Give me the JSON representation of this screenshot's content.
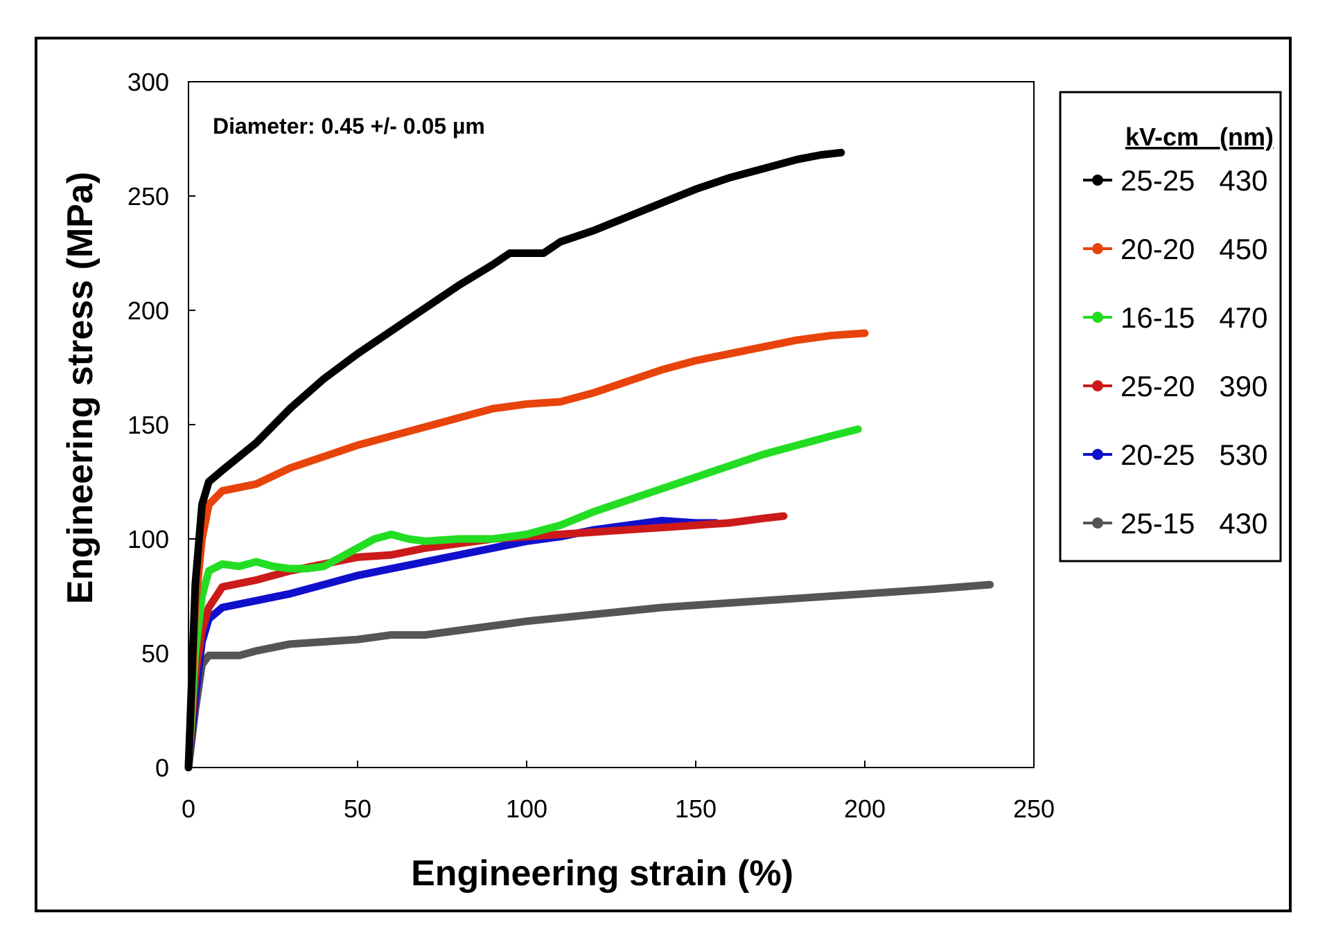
{
  "chart_data": {
    "type": "line",
    "title": "",
    "annotation": "Diameter: 0.45 +/- 0.05 µm",
    "xlabel": "Engineering strain (%)",
    "ylabel": "Engineering stress (MPa)",
    "xlim": [
      0,
      250
    ],
    "ylim": [
      0,
      300
    ],
    "xticks": [
      0,
      50,
      100,
      150,
      200,
      250
    ],
    "yticks": [
      0,
      50,
      100,
      150,
      200,
      250,
      300
    ],
    "grid": false,
    "legend": {
      "position": "right",
      "header": "kV-cm   (nm)",
      "entries": [
        "25-25   430",
        "20-20   450",
        "16-15   470",
        "25-20   390",
        "20-25   530",
        "25-15   430"
      ]
    },
    "series": [
      {
        "name": "25-25",
        "diameter": "430",
        "color": "#000000",
        "x": [
          0,
          2,
          4,
          6,
          10,
          20,
          30,
          40,
          50,
          60,
          70,
          80,
          90,
          95,
          100,
          105,
          110,
          120,
          130,
          140,
          150,
          160,
          170,
          180,
          187,
          193
        ],
        "y": [
          0,
          80,
          115,
          125,
          130,
          142,
          157,
          170,
          181,
          191,
          201,
          211,
          220,
          225,
          225,
          225,
          230,
          235,
          241,
          247,
          253,
          258,
          262,
          266,
          268,
          269
        ]
      },
      {
        "name": "20-20",
        "diameter": "450",
        "color": "#e8430a",
        "x": [
          0,
          2,
          4,
          6,
          10,
          20,
          30,
          40,
          50,
          60,
          70,
          80,
          90,
          100,
          110,
          120,
          130,
          140,
          150,
          160,
          170,
          180,
          190,
          200
        ],
        "y": [
          0,
          70,
          100,
          115,
          121,
          124,
          131,
          136,
          141,
          145,
          149,
          153,
          157,
          159,
          160,
          164,
          169,
          174,
          178,
          181,
          184,
          187,
          189,
          190
        ]
      },
      {
        "name": "16-15",
        "diameter": "470",
        "color": "#22dd22",
        "x": [
          0,
          2,
          4,
          6,
          10,
          15,
          20,
          25,
          30,
          35,
          40,
          45,
          50,
          55,
          60,
          65,
          70,
          80,
          90,
          100,
          110,
          120,
          130,
          140,
          150,
          160,
          170,
          180,
          190,
          198
        ],
        "y": [
          0,
          50,
          75,
          86,
          89,
          88,
          90,
          88,
          87,
          87,
          88,
          92,
          96,
          100,
          102,
          100,
          99,
          100,
          100,
          102,
          106,
          112,
          117,
          122,
          127,
          132,
          137,
          141,
          145,
          148
        ]
      },
      {
        "name": "25-20",
        "diameter": "390",
        "color": "#cc1a1a",
        "x": [
          0,
          2,
          4,
          6,
          10,
          20,
          30,
          40,
          50,
          60,
          70,
          80,
          90,
          100,
          110,
          120,
          130,
          140,
          150,
          160,
          170,
          176
        ],
        "y": [
          0,
          40,
          60,
          70,
          79,
          82,
          86,
          89,
          92,
          93,
          96,
          98,
          100,
          101,
          102,
          103,
          104,
          105,
          106,
          107,
          109,
          110
        ]
      },
      {
        "name": "20-25",
        "diameter": "530",
        "color": "#1010cc",
        "x": [
          0,
          2,
          4,
          6,
          10,
          20,
          30,
          40,
          50,
          60,
          70,
          80,
          90,
          100,
          110,
          120,
          130,
          140,
          150,
          156
        ],
        "y": [
          0,
          30,
          55,
          65,
          70,
          73,
          76,
          80,
          84,
          87,
          90,
          93,
          96,
          99,
          101,
          104,
          106,
          108,
          107,
          107
        ]
      },
      {
        "name": "25-15",
        "diameter": "430",
        "color": "#555555",
        "x": [
          0,
          2,
          4,
          6,
          10,
          15,
          20,
          30,
          40,
          50,
          60,
          70,
          80,
          90,
          100,
          120,
          140,
          160,
          180,
          200,
          220,
          237
        ],
        "y": [
          0,
          25,
          45,
          49,
          49,
          49,
          51,
          54,
          55,
          56,
          58,
          58,
          60,
          62,
          64,
          67,
          70,
          72,
          74,
          76,
          78,
          80
        ]
      }
    ]
  }
}
